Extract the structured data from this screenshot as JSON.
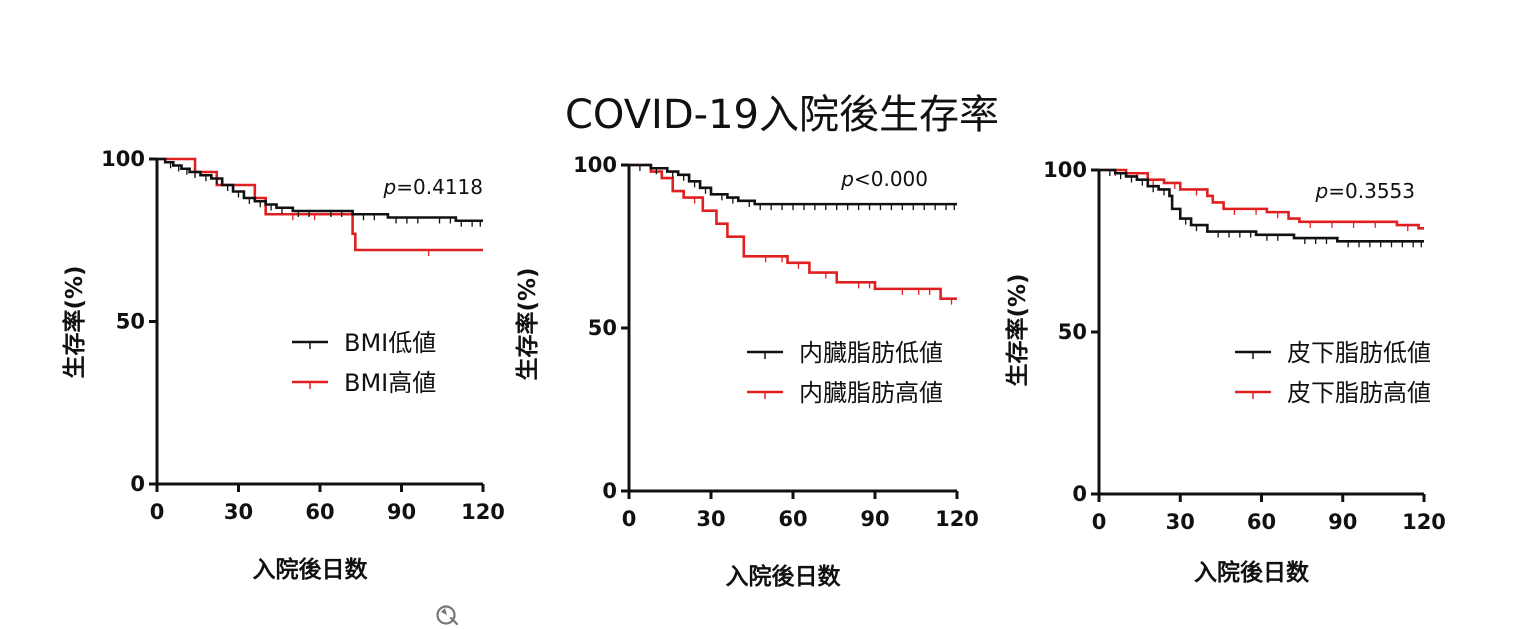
{
  "title": "COVID-19入院後生存率",
  "colors": {
    "low": "#111111",
    "high": "#e02020"
  },
  "icons": {
    "bottom": "refresh-icon"
  },
  "chart_data": [
    {
      "type": "line",
      "subtype": "kaplan-meier",
      "xlabel": "入院後日数",
      "ylabel": "生存率(%)",
      "xlim": [
        0,
        120
      ],
      "ylim": [
        0,
        100
      ],
      "xticks": [
        "0",
        "30",
        "60",
        "90",
        "120"
      ],
      "yticks": [
        "0",
        "50",
        "100"
      ],
      "annotation": {
        "italic": "p",
        "rest": "=0.4118"
      },
      "legend_position": "center-right",
      "series": [
        {
          "name": "BMI低値",
          "color_key": "low",
          "steps": [
            [
              0,
              100
            ],
            [
              3,
              99
            ],
            [
              6,
              98
            ],
            [
              9,
              97
            ],
            [
              12,
              96
            ],
            [
              16,
              95
            ],
            [
              20,
              94
            ],
            [
              24,
              92
            ],
            [
              28,
              90
            ],
            [
              32,
              88
            ],
            [
              36,
              87
            ],
            [
              40,
              86
            ],
            [
              44,
              85
            ],
            [
              50,
              84
            ],
            [
              60,
              84
            ],
            [
              72,
              83
            ],
            [
              85,
              82
            ],
            [
              100,
              82
            ],
            [
              110,
              81
            ],
            [
              120,
              81
            ]
          ],
          "censors": [
            5,
            8,
            11,
            14,
            18,
            22,
            26,
            30,
            34,
            38,
            42,
            46,
            52,
            56,
            64,
            68,
            76,
            80,
            88,
            92,
            96,
            104,
            108,
            112,
            116,
            119
          ]
        },
        {
          "name": "BMI高値",
          "color_key": "high",
          "steps": [
            [
              0,
              100
            ],
            [
              14,
              96
            ],
            [
              22,
              92
            ],
            [
              36,
              88
            ],
            [
              40,
              83
            ],
            [
              66,
              83
            ],
            [
              72,
              77
            ],
            [
              73,
              72
            ],
            [
              120,
              72
            ]
          ],
          "censors": [
            50,
            58,
            100
          ]
        }
      ]
    },
    {
      "type": "line",
      "subtype": "kaplan-meier",
      "xlabel": "入院後日数",
      "ylabel": "生存率(%)",
      "xlim": [
        0,
        120
      ],
      "ylim": [
        0,
        100
      ],
      "xticks": [
        "0",
        "30",
        "60",
        "90",
        "120"
      ],
      "yticks": [
        "0",
        "50",
        "100"
      ],
      "annotation": {
        "italic": "p",
        "rest": "<0.000"
      },
      "legend_position": "center-right",
      "series": [
        {
          "name": "内臓脂肪低値",
          "color_key": "low",
          "steps": [
            [
              0,
              100
            ],
            [
              8,
              99
            ],
            [
              14,
              98
            ],
            [
              18,
              97
            ],
            [
              22,
              95
            ],
            [
              26,
              93
            ],
            [
              30,
              91
            ],
            [
              36,
              90
            ],
            [
              40,
              89
            ],
            [
              46,
              88
            ],
            [
              120,
              88
            ]
          ],
          "censors": [
            4,
            10,
            16,
            20,
            24,
            28,
            34,
            38,
            44,
            48,
            52,
            56,
            60,
            64,
            68,
            72,
            76,
            80,
            84,
            88,
            92,
            96,
            100,
            104,
            108,
            112,
            116,
            119
          ]
        },
        {
          "name": "内臓脂肪高値",
          "color_key": "high",
          "steps": [
            [
              0,
              100
            ],
            [
              8,
              98
            ],
            [
              12,
              96
            ],
            [
              16,
              92
            ],
            [
              20,
              90
            ],
            [
              27,
              86
            ],
            [
              32,
              82
            ],
            [
              36,
              78
            ],
            [
              42,
              72
            ],
            [
              58,
              70
            ],
            [
              66,
              67
            ],
            [
              76,
              64
            ],
            [
              90,
              62
            ],
            [
              114,
              59
            ],
            [
              120,
              59
            ]
          ],
          "censors": [
            24,
            50,
            56,
            62,
            72,
            84,
            88,
            100,
            106,
            110,
            118
          ]
        }
      ]
    },
    {
      "type": "line",
      "subtype": "kaplan-meier",
      "xlabel": "入院後日数",
      "ylabel": "生存率(%)",
      "xlim": [
        0,
        120
      ],
      "ylim": [
        0,
        100
      ],
      "xticks": [
        "0",
        "30",
        "60",
        "90",
        "120"
      ],
      "yticks": [
        "0",
        "50",
        "100"
      ],
      "annotation": {
        "italic": "p",
        "rest": "=0.3553"
      },
      "legend_position": "center-right",
      "series": [
        {
          "name": "皮下脂肪低値",
          "color_key": "low",
          "steps": [
            [
              0,
              100
            ],
            [
              6,
              99
            ],
            [
              10,
              98
            ],
            [
              14,
              97
            ],
            [
              18,
              95
            ],
            [
              22,
              94
            ],
            [
              26,
              92
            ],
            [
              27,
              88
            ],
            [
              30,
              85
            ],
            [
              34,
              83
            ],
            [
              40,
              81
            ],
            [
              58,
              80
            ],
            [
              72,
              79
            ],
            [
              88,
              78
            ],
            [
              120,
              78
            ]
          ],
          "censors": [
            4,
            8,
            12,
            16,
            20,
            24,
            32,
            36,
            44,
            48,
            52,
            56,
            62,
            66,
            76,
            80,
            84,
            92,
            96,
            100,
            104,
            108,
            112,
            116,
            119
          ]
        },
        {
          "name": "皮下脂肪高値",
          "color_key": "high",
          "steps": [
            [
              0,
              100
            ],
            [
              10,
              99
            ],
            [
              18,
              97
            ],
            [
              24,
              96
            ],
            [
              30,
              94
            ],
            [
              40,
              92
            ],
            [
              42,
              90
            ],
            [
              46,
              88
            ],
            [
              62,
              87
            ],
            [
              70,
              85
            ],
            [
              74,
              84
            ],
            [
              110,
              83
            ],
            [
              118,
              82
            ],
            [
              120,
              82
            ]
          ],
          "censors": [
            6,
            14,
            20,
            28,
            36,
            50,
            58,
            66,
            78,
            86,
            94,
            102,
            114
          ]
        }
      ]
    }
  ]
}
